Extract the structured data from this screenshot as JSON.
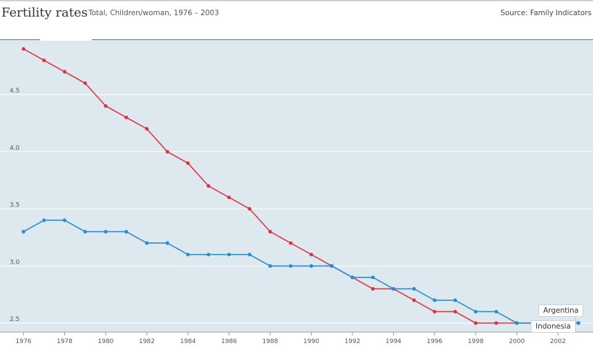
{
  "header": {
    "title": "Fertility rates",
    "subtitle": "Total, Children/woman, 1976 – 2003",
    "source": "Source: Family Indicators"
  },
  "colors": {
    "argentina": "#e0323d",
    "indonesia": "#1f8fd6",
    "plot_background": "#dde8ef",
    "grid": "#ffffff"
  },
  "chart_data": {
    "type": "line",
    "title": "Fertility rates",
    "subtitle": "Total, Children/woman, 1976 – 2003",
    "xlabel": "",
    "ylabel": "",
    "x": [
      1976,
      1977,
      1978,
      1979,
      1980,
      1981,
      1982,
      1983,
      1984,
      1985,
      1986,
      1987,
      1988,
      1989,
      1990,
      1991,
      1992,
      1993,
      1994,
      1995,
      1996,
      1997,
      1998,
      1999,
      2000,
      2001,
      2002,
      2003
    ],
    "x_ticks": [
      "1976",
      "1978",
      "1980",
      "1982",
      "1984",
      "1986",
      "1988",
      "1990",
      "1992",
      "1994",
      "1996",
      "1998",
      "2000",
      "2002"
    ],
    "y_ticks": [
      "2.5",
      "3.0",
      "3.5",
      "4.0",
      "4.5"
    ],
    "xlim": [
      1976,
      2003
    ],
    "ylim": [
      2.5,
      5.0
    ],
    "grid": "horizontal",
    "legend": "direct labels at line ends",
    "series": [
      {
        "name": "Argentina",
        "color": "#e0323d",
        "values": [
          4.9,
          4.8,
          4.7,
          4.6,
          4.4,
          4.3,
          4.2,
          4.0,
          3.9,
          3.7,
          3.6,
          3.5,
          3.3,
          3.2,
          3.1,
          3.0,
          2.9,
          2.8,
          2.8,
          2.7,
          2.6,
          2.6,
          2.5,
          2.5,
          2.5,
          2.5,
          2.5,
          2.5
        ]
      },
      {
        "name": "Indonesia",
        "color": "#1f8fd6",
        "values": [
          3.3,
          3.4,
          3.4,
          3.3,
          3.3,
          3.3,
          3.2,
          3.2,
          3.1,
          3.1,
          3.1,
          3.1,
          3.0,
          3.0,
          3.0,
          3.0,
          2.9,
          2.9,
          2.8,
          2.8,
          2.7,
          2.7,
          2.6,
          2.6,
          2.5,
          2.5,
          2.5,
          2.5
        ]
      }
    ]
  }
}
